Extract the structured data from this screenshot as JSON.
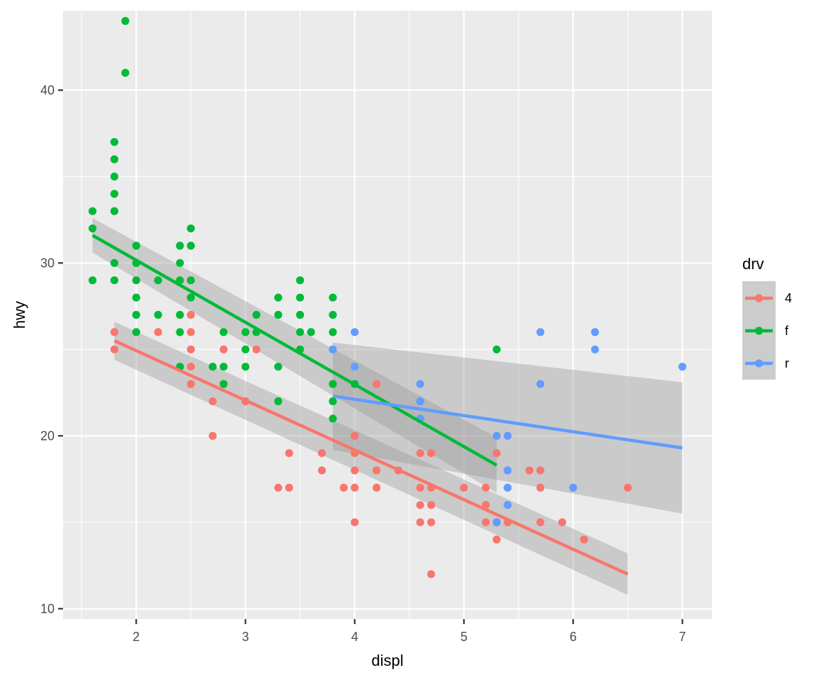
{
  "chart_data": {
    "type": "scatter",
    "title": "",
    "xlabel": "displ",
    "ylabel": "hwy",
    "xlim": [
      1.33,
      7.27
    ],
    "ylim": [
      9.4,
      44.6
    ],
    "x_ticks": [
      2,
      3,
      4,
      5,
      6,
      7
    ],
    "x_minor_ticks": [
      1.5,
      2.5,
      3.5,
      4.5,
      5.5,
      6.5
    ],
    "y_ticks": [
      10,
      20,
      30,
      40
    ],
    "y_minor_ticks": [
      15,
      25,
      35
    ],
    "grid": true,
    "legend": {
      "title": "drv",
      "position": "right",
      "entries": [
        "4",
        "f",
        "r"
      ]
    },
    "colors": {
      "4": "#F8766D",
      "f": "#00BA38",
      "r": "#619CFF",
      "panel": "#EBEBEB",
      "grid": "#FFFFFF",
      "ribbon": "#999999"
    },
    "series": [
      {
        "name": "4",
        "points": [
          [
            1.8,
            26
          ],
          [
            1.8,
            25
          ],
          [
            2.2,
            26
          ],
          [
            2.5,
            27
          ],
          [
            2.5,
            26
          ],
          [
            2.5,
            25
          ],
          [
            2.5,
            24
          ],
          [
            2.5,
            23
          ],
          [
            2.7,
            22
          ],
          [
            2.7,
            20
          ],
          [
            2.8,
            25
          ],
          [
            3.0,
            22
          ],
          [
            3.1,
            25
          ],
          [
            3.3,
            17
          ],
          [
            3.4,
            19
          ],
          [
            3.4,
            17
          ],
          [
            3.7,
            19
          ],
          [
            3.7,
            18
          ],
          [
            3.9,
            17
          ],
          [
            4.0,
            20
          ],
          [
            4.0,
            19
          ],
          [
            4.0,
            18
          ],
          [
            4.0,
            17
          ],
          [
            4.0,
            15
          ],
          [
            4.2,
            18
          ],
          [
            4.2,
            17
          ],
          [
            4.2,
            23
          ],
          [
            4.4,
            18
          ],
          [
            4.6,
            19
          ],
          [
            4.6,
            17
          ],
          [
            4.6,
            16
          ],
          [
            4.6,
            15
          ],
          [
            4.7,
            19
          ],
          [
            4.7,
            17
          ],
          [
            4.7,
            16
          ],
          [
            4.7,
            15
          ],
          [
            4.7,
            12
          ],
          [
            5.0,
            17
          ],
          [
            5.2,
            17
          ],
          [
            5.2,
            16
          ],
          [
            5.2,
            15
          ],
          [
            5.3,
            19
          ],
          [
            5.3,
            15
          ],
          [
            5.3,
            14
          ],
          [
            5.4,
            15
          ],
          [
            5.6,
            18
          ],
          [
            5.7,
            18
          ],
          [
            5.7,
            17
          ],
          [
            5.7,
            15
          ],
          [
            5.9,
            15
          ],
          [
            6.1,
            14
          ],
          [
            6.5,
            17
          ]
        ],
        "fit": {
          "x": [
            1.8,
            6.5
          ],
          "y": [
            25.5,
            12.0
          ],
          "lower": [
            24.4,
            10.8
          ],
          "upper": [
            26.6,
            13.2
          ]
        }
      },
      {
        "name": "f",
        "points": [
          [
            1.6,
            33
          ],
          [
            1.6,
            32
          ],
          [
            1.6,
            29
          ],
          [
            1.8,
            37
          ],
          [
            1.8,
            36
          ],
          [
            1.8,
            35
          ],
          [
            1.8,
            34
          ],
          [
            1.8,
            33
          ],
          [
            1.8,
            30
          ],
          [
            1.8,
            29
          ],
          [
            1.9,
            44
          ],
          [
            1.9,
            41
          ],
          [
            2.0,
            31
          ],
          [
            2.0,
            30
          ],
          [
            2.0,
            29
          ],
          [
            2.0,
            28
          ],
          [
            2.0,
            27
          ],
          [
            2.0,
            26
          ],
          [
            2.2,
            29
          ],
          [
            2.2,
            27
          ],
          [
            2.4,
            31
          ],
          [
            2.4,
            30
          ],
          [
            2.4,
            29
          ],
          [
            2.4,
            27
          ],
          [
            2.4,
            26
          ],
          [
            2.4,
            24
          ],
          [
            2.5,
            32
          ],
          [
            2.5,
            31
          ],
          [
            2.5,
            29
          ],
          [
            2.5,
            28
          ],
          [
            2.7,
            24
          ],
          [
            2.8,
            26
          ],
          [
            2.8,
            24
          ],
          [
            2.8,
            23
          ],
          [
            3.0,
            26
          ],
          [
            3.0,
            25
          ],
          [
            3.0,
            24
          ],
          [
            3.1,
            27
          ],
          [
            3.1,
            26
          ],
          [
            3.3,
            28
          ],
          [
            3.3,
            27
          ],
          [
            3.3,
            24
          ],
          [
            3.3,
            22
          ],
          [
            3.5,
            29
          ],
          [
            3.5,
            28
          ],
          [
            3.5,
            27
          ],
          [
            3.5,
            26
          ],
          [
            3.5,
            25
          ],
          [
            3.6,
            26
          ],
          [
            3.8,
            28
          ],
          [
            3.8,
            27
          ],
          [
            3.8,
            26
          ],
          [
            3.8,
            23
          ],
          [
            3.8,
            22
          ],
          [
            3.8,
            21
          ],
          [
            4.0,
            23
          ],
          [
            5.3,
            25
          ]
        ],
        "fit": {
          "x": [
            1.6,
            5.3
          ],
          "y": [
            31.6,
            18.3
          ],
          "lower": [
            30.6,
            16.7
          ],
          "upper": [
            32.6,
            19.9
          ]
        }
      },
      {
        "name": "r",
        "points": [
          [
            3.8,
            25
          ],
          [
            4.0,
            26
          ],
          [
            4.0,
            24
          ],
          [
            4.6,
            23
          ],
          [
            4.6,
            22
          ],
          [
            4.6,
            21
          ],
          [
            5.3,
            20
          ],
          [
            5.3,
            15
          ],
          [
            5.4,
            20
          ],
          [
            5.4,
            18
          ],
          [
            5.4,
            17
          ],
          [
            5.4,
            16
          ],
          [
            5.7,
            26
          ],
          [
            5.7,
            23
          ],
          [
            6.0,
            17
          ],
          [
            6.2,
            26
          ],
          [
            6.2,
            25
          ],
          [
            7.0,
            24
          ]
        ],
        "fit": {
          "x": [
            3.8,
            7.0
          ],
          "y": [
            22.3,
            19.3
          ],
          "lower": [
            19.2,
            15.5
          ],
          "upper": [
            25.4,
            23.1
          ]
        }
      }
    ]
  }
}
